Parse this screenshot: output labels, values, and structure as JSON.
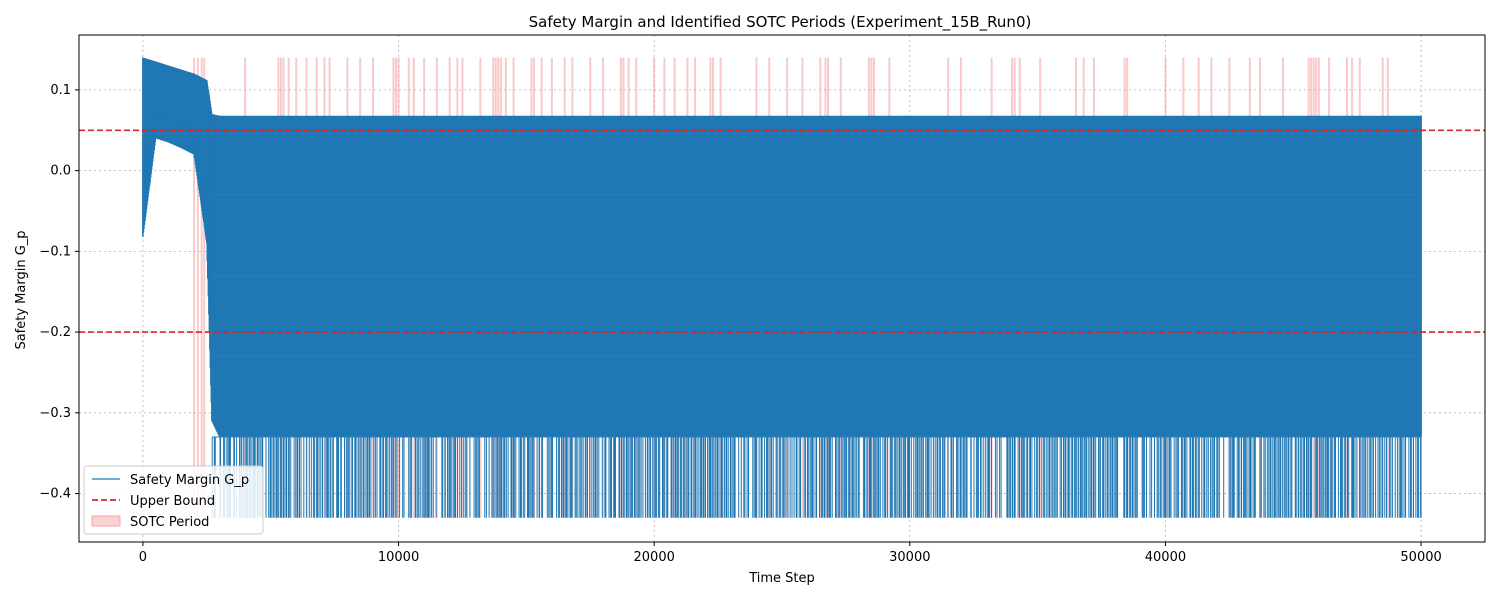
{
  "chart_data": {
    "type": "line",
    "title": "Safety Margin and Identified SOTC Periods (Experiment_15B_Run0)",
    "xlabel": "Time Step",
    "ylabel": "Safety Margin G_p",
    "xlim": [
      -2500,
      52500
    ],
    "ylim": [
      -0.46,
      0.168
    ],
    "xticks": [
      0,
      10000,
      20000,
      30000,
      40000,
      50000
    ],
    "yticks": [
      -0.4,
      -0.3,
      -0.2,
      -0.1,
      0.0,
      0.1
    ],
    "ytick_labels": [
      "−0.4",
      "−0.3",
      "−0.2",
      "−0.1",
      "0.0",
      "0.1"
    ],
    "grid": true,
    "legend_position": "bottom-left",
    "series": [
      {
        "name": "Safety Margin G_p",
        "color": "#1f77b4",
        "x": [
          0,
          500,
          1000,
          1500,
          2000,
          2500,
          2700,
          3000,
          5000,
          10000,
          15000,
          20000,
          25000,
          30000,
          35000,
          40000,
          45000,
          50000
        ],
        "upper": [
          0.14,
          0.135,
          0.13,
          0.125,
          0.12,
          0.112,
          0.07,
          0.068,
          0.068,
          0.068,
          0.068,
          0.068,
          0.068,
          0.068,
          0.068,
          0.068,
          0.068,
          0.068
        ],
        "lower": [
          -0.082,
          0.04,
          0.035,
          0.028,
          0.02,
          -0.09,
          -0.31,
          -0.33,
          -0.33,
          -0.33,
          -0.33,
          -0.33,
          -0.33,
          -0.33,
          -0.33,
          -0.33,
          -0.33,
          -0.33
        ],
        "min": -0.43,
        "band_levels": [
          -0.03,
          -0.13,
          -0.23,
          -0.33
        ]
      }
    ],
    "reference_lines": [
      {
        "name": "Upper Bound",
        "y": 0.05,
        "color": "#d62728",
        "style": "dashed"
      },
      {
        "name": "",
        "y": -0.2,
        "color": "#d62728",
        "style": "dashed"
      }
    ],
    "sotc_periods": {
      "name": "SOTC Period",
      "color": "#f4a6a6",
      "x": [
        2000,
        2150,
        2300,
        2400,
        4000,
        5300,
        5400,
        5500,
        5700,
        6000,
        6400,
        6800,
        7100,
        7300,
        8000,
        8500,
        9000,
        9800,
        9900,
        10000,
        10400,
        10600,
        11000,
        11500,
        12000,
        12300,
        12500,
        13200,
        13700,
        13800,
        13900,
        14000,
        14200,
        14500,
        15200,
        15300,
        15600,
        16000,
        16500,
        16800,
        17500,
        18000,
        18700,
        18800,
        19000,
        19300,
        20000,
        20400,
        20800,
        21300,
        21600,
        22200,
        22300,
        22600,
        24000,
        24500,
        25200,
        25800,
        26500,
        26700,
        26800,
        27300,
        28400,
        28500,
        28600,
        29200,
        31500,
        32000,
        33200,
        34000,
        34100,
        34300,
        35100,
        36500,
        36800,
        37200,
        38400,
        38500,
        40000,
        40700,
        41300,
        41800,
        42500,
        43300,
        43700,
        44600,
        45600,
        45700,
        45800,
        45900,
        46000,
        46400,
        47100,
        47300,
        47600,
        48500,
        48700
      ]
    }
  },
  "legend": {
    "items": [
      {
        "label": "Safety Margin G_p"
      },
      {
        "label": "Upper Bound"
      },
      {
        "label": "SOTC Period"
      }
    ]
  }
}
